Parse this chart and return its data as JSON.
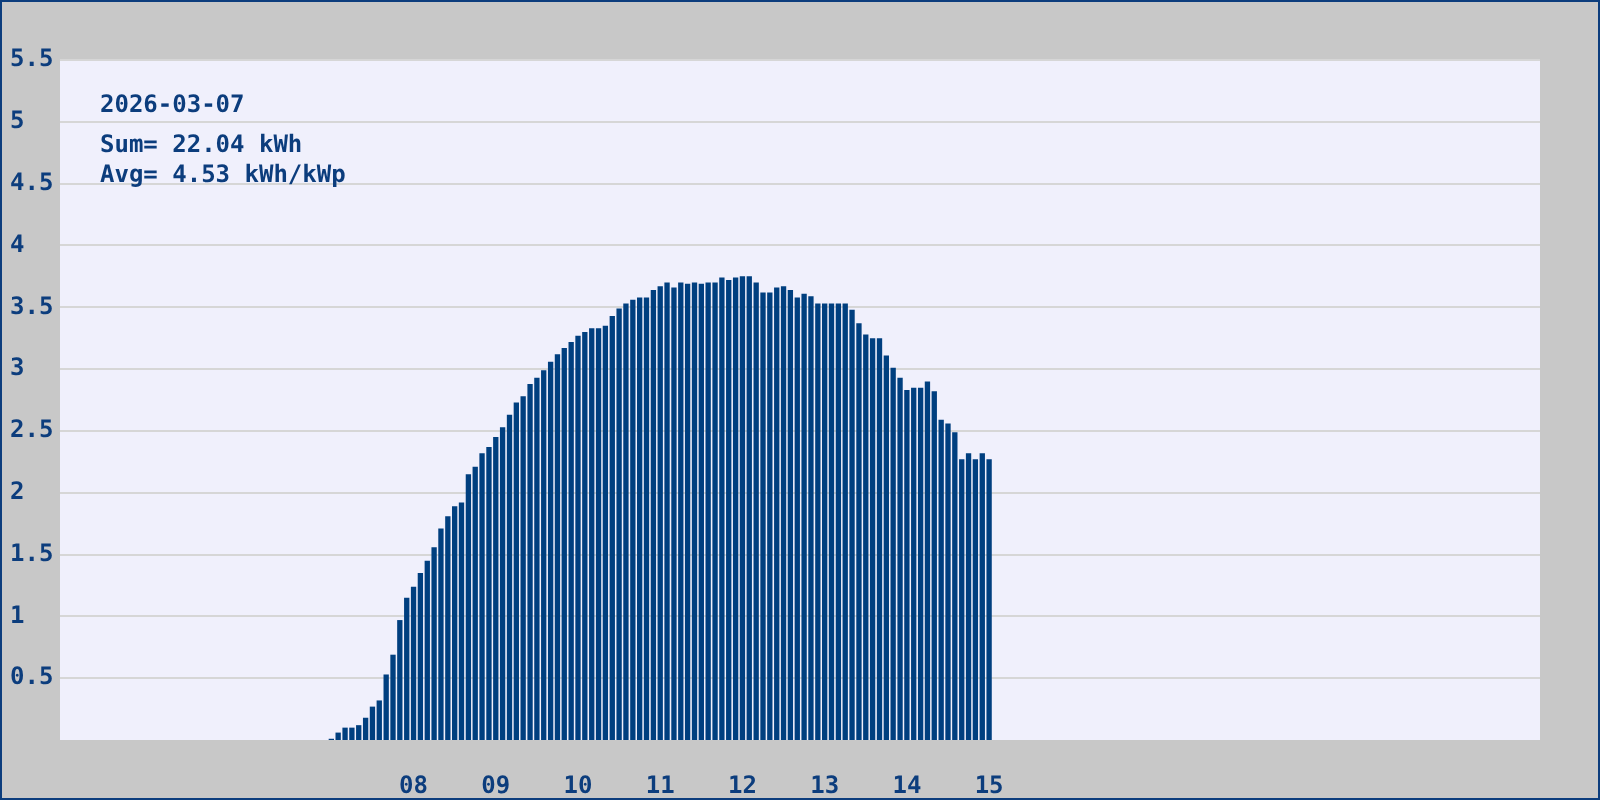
{
  "chart_data": {
    "type": "bar",
    "title": "2026-03-07",
    "annotations": [
      "Sum= 22.04 kWh",
      "Avg= 4.53 kWh/kWp"
    ],
    "x": [
      7,
      7.083,
      7.167,
      7.25,
      7.333,
      7.417,
      7.5,
      7.583,
      7.667,
      7.75,
      7.833,
      7.917,
      8,
      8.083,
      8.167,
      8.25,
      8.333,
      8.417,
      8.5,
      8.583,
      8.667,
      8.75,
      8.833,
      8.917,
      9,
      9.083,
      9.167,
      9.25,
      9.333,
      9.417,
      9.5,
      9.583,
      9.667,
      9.75,
      9.833,
      9.917,
      10,
      10.083,
      10.167,
      10.25,
      10.333,
      10.417,
      10.5,
      10.583,
      10.667,
      10.75,
      10.833,
      10.917,
      11,
      11.083,
      11.167,
      11.25,
      11.333,
      11.417,
      11.5,
      11.583,
      11.667,
      11.75,
      11.833,
      11.917,
      12,
      12.083,
      12.167,
      12.25,
      12.333,
      12.417,
      12.5,
      12.583,
      12.667,
      12.75,
      12.833,
      12.917,
      13,
      13.083,
      13.167,
      13.25,
      13.333,
      13.417,
      13.5,
      13.583,
      13.667,
      13.75,
      13.833,
      13.917,
      14,
      14.083,
      14.167,
      14.25,
      14.333,
      14.417,
      14.5,
      14.583,
      14.667,
      14.75,
      14.833,
      14.917,
      15
    ],
    "values": [
      0.01,
      0.06,
      0.1,
      0.1,
      0.12,
      0.18,
      0.27,
      0.32,
      0.53,
      0.69,
      0.97,
      1.15,
      1.24,
      1.35,
      1.45,
      1.56,
      1.71,
      1.81,
      1.89,
      1.92,
      2.15,
      2.21,
      2.32,
      2.37,
      2.45,
      2.53,
      2.63,
      2.73,
      2.78,
      2.88,
      2.93,
      2.99,
      3.06,
      3.12,
      3.17,
      3.22,
      3.27,
      3.3,
      3.33,
      3.33,
      3.35,
      3.43,
      3.49,
      3.53,
      3.56,
      3.58,
      3.58,
      3.64,
      3.67,
      3.7,
      3.66,
      3.7,
      3.69,
      3.7,
      3.69,
      3.7,
      3.7,
      3.74,
      3.72,
      3.74,
      3.75,
      3.75,
      3.7,
      3.62,
      3.62,
      3.66,
      3.67,
      3.64,
      3.58,
      3.61,
      3.59,
      3.53,
      3.53,
      3.53,
      3.53,
      3.53,
      3.48,
      3.37,
      3.28,
      3.25,
      3.25,
      3.11,
      3.01,
      2.93,
      2.83,
      2.85,
      2.85,
      2.9,
      2.82,
      2.59,
      2.56,
      2.49,
      2.27,
      2.32,
      2.27,
      2.32,
      2.27
    ],
    "color": "#003f7f",
    "xlim": [
      3.7,
      21.7
    ],
    "xticks": [
      {
        "value": 8,
        "label": "08"
      },
      {
        "value": 9,
        "label": "09"
      },
      {
        "value": 10,
        "label": "10"
      },
      {
        "value": 11,
        "label": "11"
      },
      {
        "value": 12,
        "label": "12"
      },
      {
        "value": 13,
        "label": "13"
      },
      {
        "value": 14,
        "label": "14"
      },
      {
        "value": 15,
        "label": "15"
      }
    ],
    "ylim": [
      0,
      5.5
    ],
    "yticks": [
      0.5,
      1,
      1.5,
      2,
      2.5,
      3,
      3.5,
      4,
      4.5,
      5,
      5.5
    ],
    "grid": "y"
  }
}
